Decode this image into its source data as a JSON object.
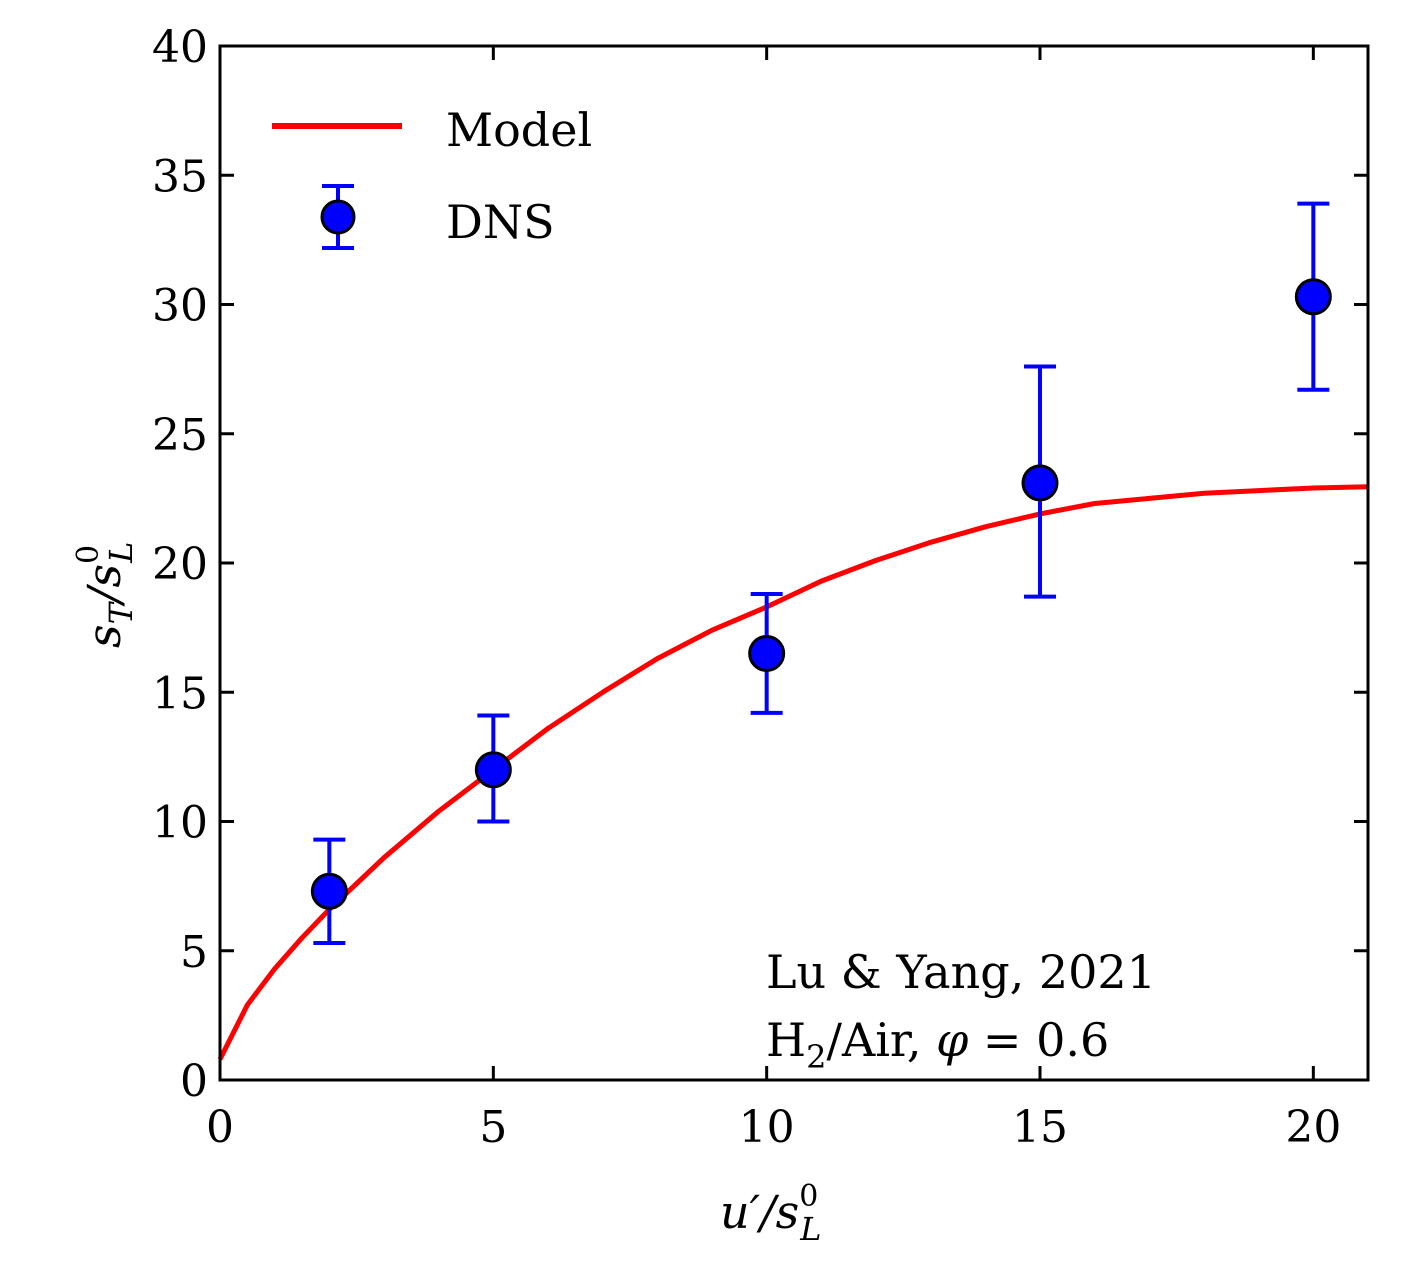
{
  "chart_data": {
    "type": "scatter",
    "xlabel": "u′/s",
    "xlabel_sup": "0",
    "xlabel_sub": "L",
    "ylabel_a": "s",
    "ylabel_a_sub": "T",
    "ylabel_b": "/s",
    "ylabel_b_sup": "0",
    "ylabel_b_sub": "L",
    "xlim": [
      0,
      21
    ],
    "ylim": [
      0,
      40
    ],
    "x_ticks": [
      0,
      5,
      10,
      15,
      20
    ],
    "y_ticks": [
      0,
      5,
      10,
      15,
      20,
      25,
      30,
      35,
      40
    ],
    "grid": false,
    "legend_position": "top-left",
    "series": [
      {
        "name": "Model",
        "kind": "line",
        "color": "#ff0000",
        "x": [
          0,
          0.5,
          1,
          1.5,
          2,
          2.5,
          3,
          4,
          5,
          6,
          7,
          8,
          9,
          10,
          11,
          12,
          13,
          14,
          15,
          16,
          17,
          18,
          19,
          20,
          21
        ],
        "y": [
          0.8,
          2.9,
          4.3,
          5.5,
          6.6,
          7.6,
          8.6,
          10.4,
          12.0,
          13.6,
          15.0,
          16.3,
          17.4,
          18.3,
          19.3,
          20.1,
          20.8,
          21.4,
          21.9,
          22.3,
          22.5,
          22.7,
          22.8,
          22.9,
          22.95
        ]
      },
      {
        "name": "DNS",
        "kind": "errorbar",
        "color": "#0000ff",
        "x": [
          2,
          5,
          10,
          15,
          20
        ],
        "y": [
          7.3,
          12.0,
          16.5,
          23.1,
          30.3
        ],
        "y_low": [
          5.3,
          10.0,
          14.2,
          18.7,
          26.7
        ],
        "y_high": [
          9.3,
          14.1,
          18.8,
          27.6,
          33.9
        ]
      }
    ],
    "annotation": {
      "line1": "Lu & Yang, 2021",
      "line2_a": "H",
      "line2_sub": "2",
      "line2_b": "/Air, ",
      "line2_phi": "φ",
      "line2_c": " = 0.6"
    }
  }
}
